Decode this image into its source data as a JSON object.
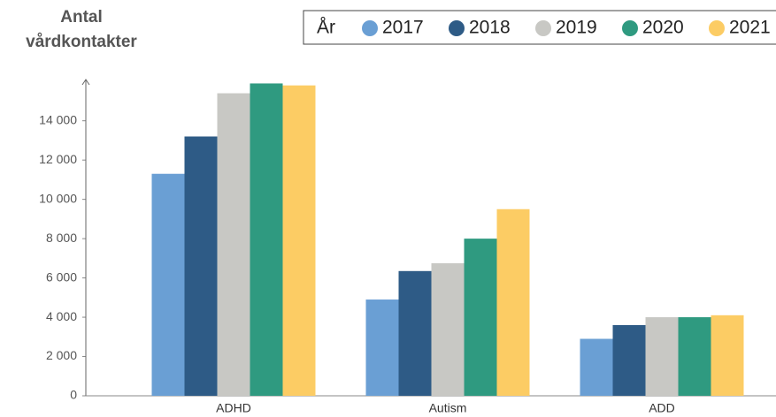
{
  "chart_data": {
    "type": "bar",
    "y_label_lines": [
      "Antal",
      "vårdkontakter"
    ],
    "legend_title": "År",
    "categories": [
      "ADHD",
      "Autism",
      "ADD"
    ],
    "series": [
      {
        "name": "2017",
        "color": "#6a9fd4",
        "values": [
          11300,
          4900,
          2900
        ]
      },
      {
        "name": "2018",
        "color": "#2e5b86",
        "values": [
          13200,
          6350,
          3600
        ]
      },
      {
        "name": "2019",
        "color": "#c8c8c4",
        "values": [
          15400,
          6750,
          4000
        ]
      },
      {
        "name": "2020",
        "color": "#2f9a80",
        "values": [
          15900,
          8000,
          4000
        ]
      },
      {
        "name": "2021",
        "color": "#fccc64",
        "values": [
          15800,
          9500,
          4100
        ]
      }
    ],
    "ylim": [
      0,
      16100
    ],
    "yticks": [
      0,
      {
        "value": 2000,
        "label": "2 000"
      },
      {
        "value": 4000,
        "label": "4 000"
      },
      {
        "value": 6000,
        "label": "6 000"
      },
      {
        "value": 8000,
        "label": "8 000"
      },
      {
        "value": 10000,
        "label": "10 000"
      },
      {
        "value": 12000,
        "label": "12 000"
      },
      {
        "value": 14000,
        "label": "14 000"
      }
    ],
    "legend": "top-right"
  }
}
